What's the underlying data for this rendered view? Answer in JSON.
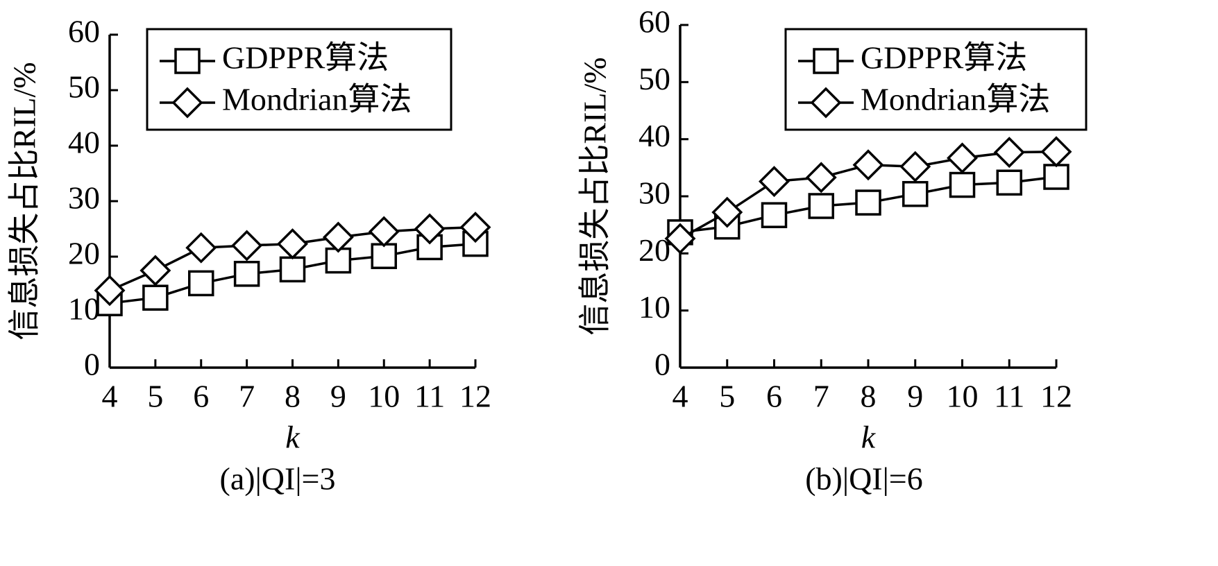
{
  "chart_data": [
    {
      "type": "line",
      "caption": "(a)|QI|=3",
      "xlabel": "k",
      "ylabel": "信息损失占比RIL/%",
      "x": [
        4,
        5,
        6,
        7,
        8,
        9,
        10,
        11,
        12
      ],
      "xlim": [
        4,
        12
      ],
      "xticks": [
        4,
        5,
        6,
        7,
        8,
        9,
        10,
        11,
        12
      ],
      "ylim": [
        0,
        60
      ],
      "yticks": [
        0,
        10,
        20,
        30,
        40,
        50,
        60
      ],
      "legend": "upper right",
      "series": [
        {
          "name": "GDPPR算法",
          "color": "#000000",
          "marker": "square",
          "values": [
            11.6,
            12.6,
            15.2,
            16.9,
            17.7,
            19.3,
            20.1,
            21.7,
            22.3
          ]
        },
        {
          "name": "Mondrian算法",
          "color": "#000000",
          "marker": "diamond",
          "values": [
            13.9,
            17.5,
            21.6,
            22.0,
            22.3,
            23.5,
            24.5,
            25.0,
            25.3
          ]
        }
      ]
    },
    {
      "type": "line",
      "caption": "(b)|QI|=6",
      "xlabel": "k",
      "ylabel": "信息损失占比RIL/%",
      "x": [
        4,
        5,
        6,
        7,
        8,
        9,
        10,
        11,
        12
      ],
      "xlim": [
        4,
        12
      ],
      "xticks": [
        4,
        5,
        6,
        7,
        8,
        9,
        10,
        11,
        12
      ],
      "ylim": [
        0,
        60
      ],
      "yticks": [
        0,
        10,
        20,
        30,
        40,
        50,
        60
      ],
      "legend": "upper right",
      "series": [
        {
          "name": "GDPPR算法",
          "color": "#000000",
          "marker": "square",
          "values": [
            23.7,
            24.7,
            26.7,
            28.3,
            28.9,
            30.4,
            32.0,
            32.4,
            33.4
          ]
        },
        {
          "name": "Mondrian算法",
          "color": "#000000",
          "marker": "diamond",
          "values": [
            22.6,
            27.2,
            32.6,
            33.3,
            35.5,
            35.2,
            36.7,
            37.7,
            37.8
          ]
        }
      ]
    }
  ]
}
